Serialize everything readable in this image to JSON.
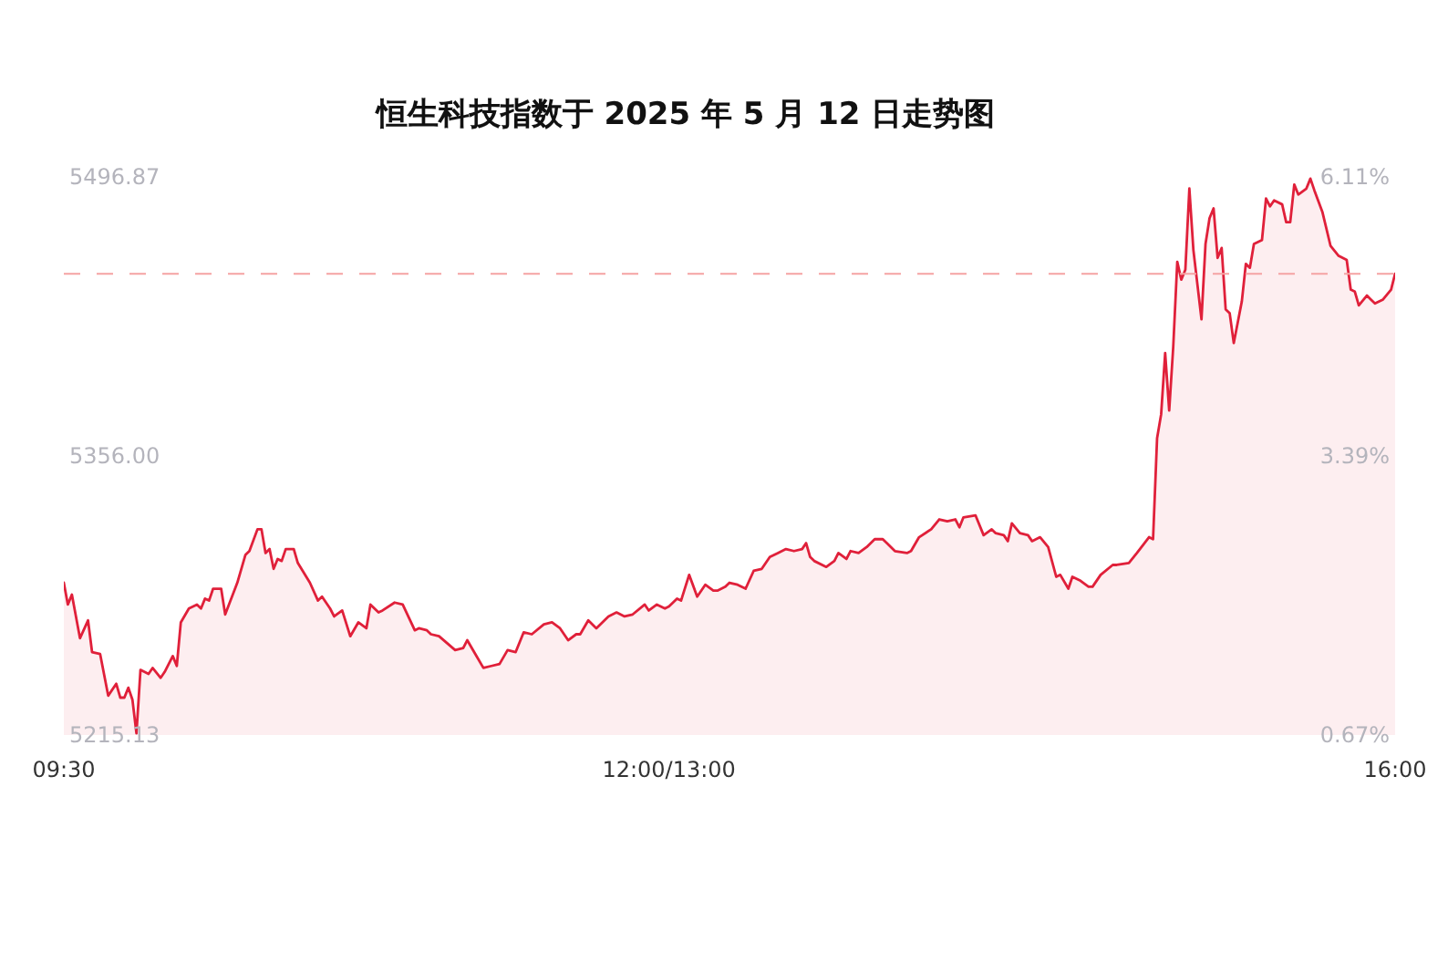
{
  "chart_data": {
    "type": "area",
    "title": "恒生科技指数于 2025 年 5 月 12 日走势图",
    "categories": [
      "09:30",
      null,
      null,
      null,
      null,
      null,
      null,
      null,
      null,
      null,
      null,
      null,
      null,
      null,
      null,
      null,
      null,
      null,
      null,
      null,
      null,
      null,
      null,
      null,
      null,
      null,
      null,
      null,
      null,
      null,
      null,
      null,
      null,
      null,
      null,
      null,
      null,
      null,
      null,
      null,
      null,
      null,
      null,
      null,
      null,
      null,
      null,
      null,
      null,
      null,
      null,
      null,
      null,
      null,
      null,
      null,
      null,
      null,
      null,
      null,
      null,
      null,
      null,
      null,
      null,
      null,
      null,
      null,
      null,
      null,
      null,
      null,
      null,
      null,
      null,
      null,
      null,
      null,
      null,
      null,
      null,
      null,
      null,
      null,
      null,
      null,
      null,
      null,
      null,
      null,
      null,
      null,
      null,
      null,
      null,
      null,
      null,
      null,
      null,
      null,
      null,
      null,
      null,
      null,
      null,
      null,
      null,
      null,
      null,
      null,
      null,
      null,
      null,
      null,
      null,
      null,
      null,
      null,
      null,
      null,
      null,
      null,
      null,
      null,
      null,
      null,
      null,
      null,
      null,
      null,
      null,
      null,
      null,
      null,
      null,
      null,
      null,
      null,
      null,
      null,
      null,
      null,
      null,
      null,
      null,
      null,
      null,
      null,
      null,
      null,
      "12:00/13:00",
      null,
      null,
      null,
      null,
      null,
      null,
      null,
      null,
      null,
      null,
      null,
      null,
      null,
      null,
      null,
      null,
      null,
      null,
      null,
      null,
      null,
      null,
      null,
      null,
      null,
      null,
      null,
      null,
      null,
      null,
      null,
      null,
      null,
      null,
      null,
      null,
      null,
      null,
      null,
      null,
      null,
      null,
      null,
      null,
      null,
      null,
      null,
      null,
      null,
      null,
      null,
      null,
      null,
      null,
      null,
      null,
      null,
      null,
      null,
      null,
      null,
      null,
      null,
      null,
      null,
      null,
      null,
      null,
      null,
      null,
      null,
      null,
      null,
      null,
      null,
      null,
      null,
      null,
      null,
      null,
      null,
      null,
      null,
      null,
      null,
      null,
      null,
      null,
      null,
      null,
      null,
      null,
      null,
      null,
      null,
      null,
      null,
      null,
      null,
      null,
      null,
      null,
      null,
      null,
      null,
      null,
      null,
      null,
      null,
      null,
      null,
      null,
      null,
      null,
      null,
      null,
      null,
      null,
      null,
      null,
      null,
      null,
      null,
      null,
      null,
      null,
      null,
      null,
      null,
      null,
      null,
      null,
      null,
      null,
      null,
      null,
      null,
      null,
      null,
      null,
      null,
      null,
      null,
      null,
      null,
      null,
      null,
      null,
      null,
      null,
      null,
      null,
      null,
      null,
      null,
      null,
      null,
      null,
      null,
      null,
      null,
      null,
      null,
      null,
      null,
      null,
      null,
      null,
      null,
      null,
      null,
      null,
      null,
      null,
      null,
      null,
      null,
      null,
      null,
      "16:00"
    ],
    "series": [
      {
        "color": "#e0203a",
        "values": [
          5292,
          5281,
          5286,
          null,
          5264,
          null,
          5273,
          5257,
          null,
          5256,
          null,
          5235,
          null,
          5241,
          5234,
          5234,
          5239,
          5233,
          5216,
          5248,
          null,
          5246,
          5249,
          null,
          5244,
          5247,
          null,
          5255,
          5250,
          5272,
          null,
          5279,
          null,
          5281,
          5279,
          5284,
          5283,
          5289,
          null,
          5289,
          5276,
          null,
          null,
          5292,
          null,
          5306,
          5308,
          null,
          5319,
          5319,
          5307,
          5309,
          5299,
          5304,
          5303,
          5309,
          null,
          5309,
          5302,
          null,
          null,
          5292,
          null,
          5283,
          5285,
          null,
          5279,
          5275,
          null,
          5278,
          null,
          5265,
          null,
          5272,
          null,
          5269,
          5281,
          null,
          5277,
          5278,
          null,
          null,
          5282,
          null,
          5281,
          null,
          null,
          5268,
          5269,
          null,
          5268,
          5266,
          null,
          5265,
          null,
          null,
          null,
          5258,
          null,
          5259,
          5263,
          null,
          5256,
          null,
          5249,
          null,
          5250,
          null,
          5251,
          null,
          5258,
          null,
          5257,
          null,
          5267,
          null,
          5266,
          null,
          null,
          5271,
          null,
          5272,
          null,
          5269,
          null,
          5263,
          null,
          5266,
          5266,
          null,
          5273,
          null,
          5269,
          null,
          null,
          5275,
          null,
          5277,
          null,
          5275,
          null,
          5276,
          null,
          null,
          5281,
          5278,
          null,
          5281,
          null,
          5279,
          5280,
          null,
          5284,
          5283,
          null,
          5296,
          null,
          5285,
          null,
          5291,
          null,
          5288,
          5288,
          null,
          5290,
          5292,
          null,
          5291,
          null,
          5289,
          null,
          5298,
          null,
          5299,
          null,
          5305,
          null,
          5307,
          null,
          5309,
          null,
          5308,
          null,
          5309,
          5312,
          5305,
          5303,
          null,
          null,
          5300,
          null,
          5303,
          5307,
          null,
          5304,
          5308,
          null,
          5307,
          null,
          5310,
          null,
          5314,
          null,
          5314,
          5312,
          null,
          5308,
          null,
          null,
          5307,
          5308,
          null,
          5315,
          null,
          null,
          5319,
          null,
          5324,
          null,
          5323,
          null,
          5324,
          5320,
          5325,
          null,
          null,
          5326,
          null,
          5316,
          null,
          5319,
          5317,
          null,
          5316,
          5313,
          5322,
          null,
          5317,
          null,
          5316,
          5313,
          null,
          5315,
          null,
          5310,
          null,
          5295,
          5296,
          null,
          5289,
          5295,
          null,
          5293,
          null,
          5290,
          5290,
          null,
          5296,
          null,
          null,
          5301,
          5301,
          null,
          null,
          5302,
          null,
          5307,
          null,
          null,
          5315,
          5314,
          5365,
          5377,
          5408,
          5379,
          5411,
          5454,
          5445,
          5450,
          5491,
          5460,
          null,
          5425,
          5463,
          5476,
          5481,
          5456,
          5461,
          5430,
          5428,
          5413,
          null,
          5434,
          5453,
          5451,
          5463,
          null,
          5465,
          5486,
          5482,
          5485,
          null,
          5483,
          5474,
          5474,
          5493,
          5488,
          null,
          5491,
          5496,
          5490,
          null,
          5479,
          null,
          5462,
          null,
          5457,
          null,
          5455,
          5440,
          5439,
          5432,
          null,
          5437,
          5435,
          5433,
          null,
          5435,
          null,
          5440,
          5448
        ]
      }
    ],
    "ylim": [
      5215.13,
      5496.87
    ],
    "yticks": [
      5215.13,
      {
        "value": 5356,
        "label": "5356.00"
      },
      5496.87
    ],
    "y2lim": [
      0.67,
      6.11
    ],
    "y2ticks": [
      {
        "value": 0.67,
        "label": "0.67%"
      },
      {
        "value": 3.39,
        "label": "3.39%"
      },
      {
        "value": 6.11,
        "label": "6.11%"
      }
    ],
    "ref_lines": [
      {
        "axis": "y",
        "value": 5448,
        "color": "#f5a3a3",
        "line_style": "dashed"
      }
    ]
  }
}
